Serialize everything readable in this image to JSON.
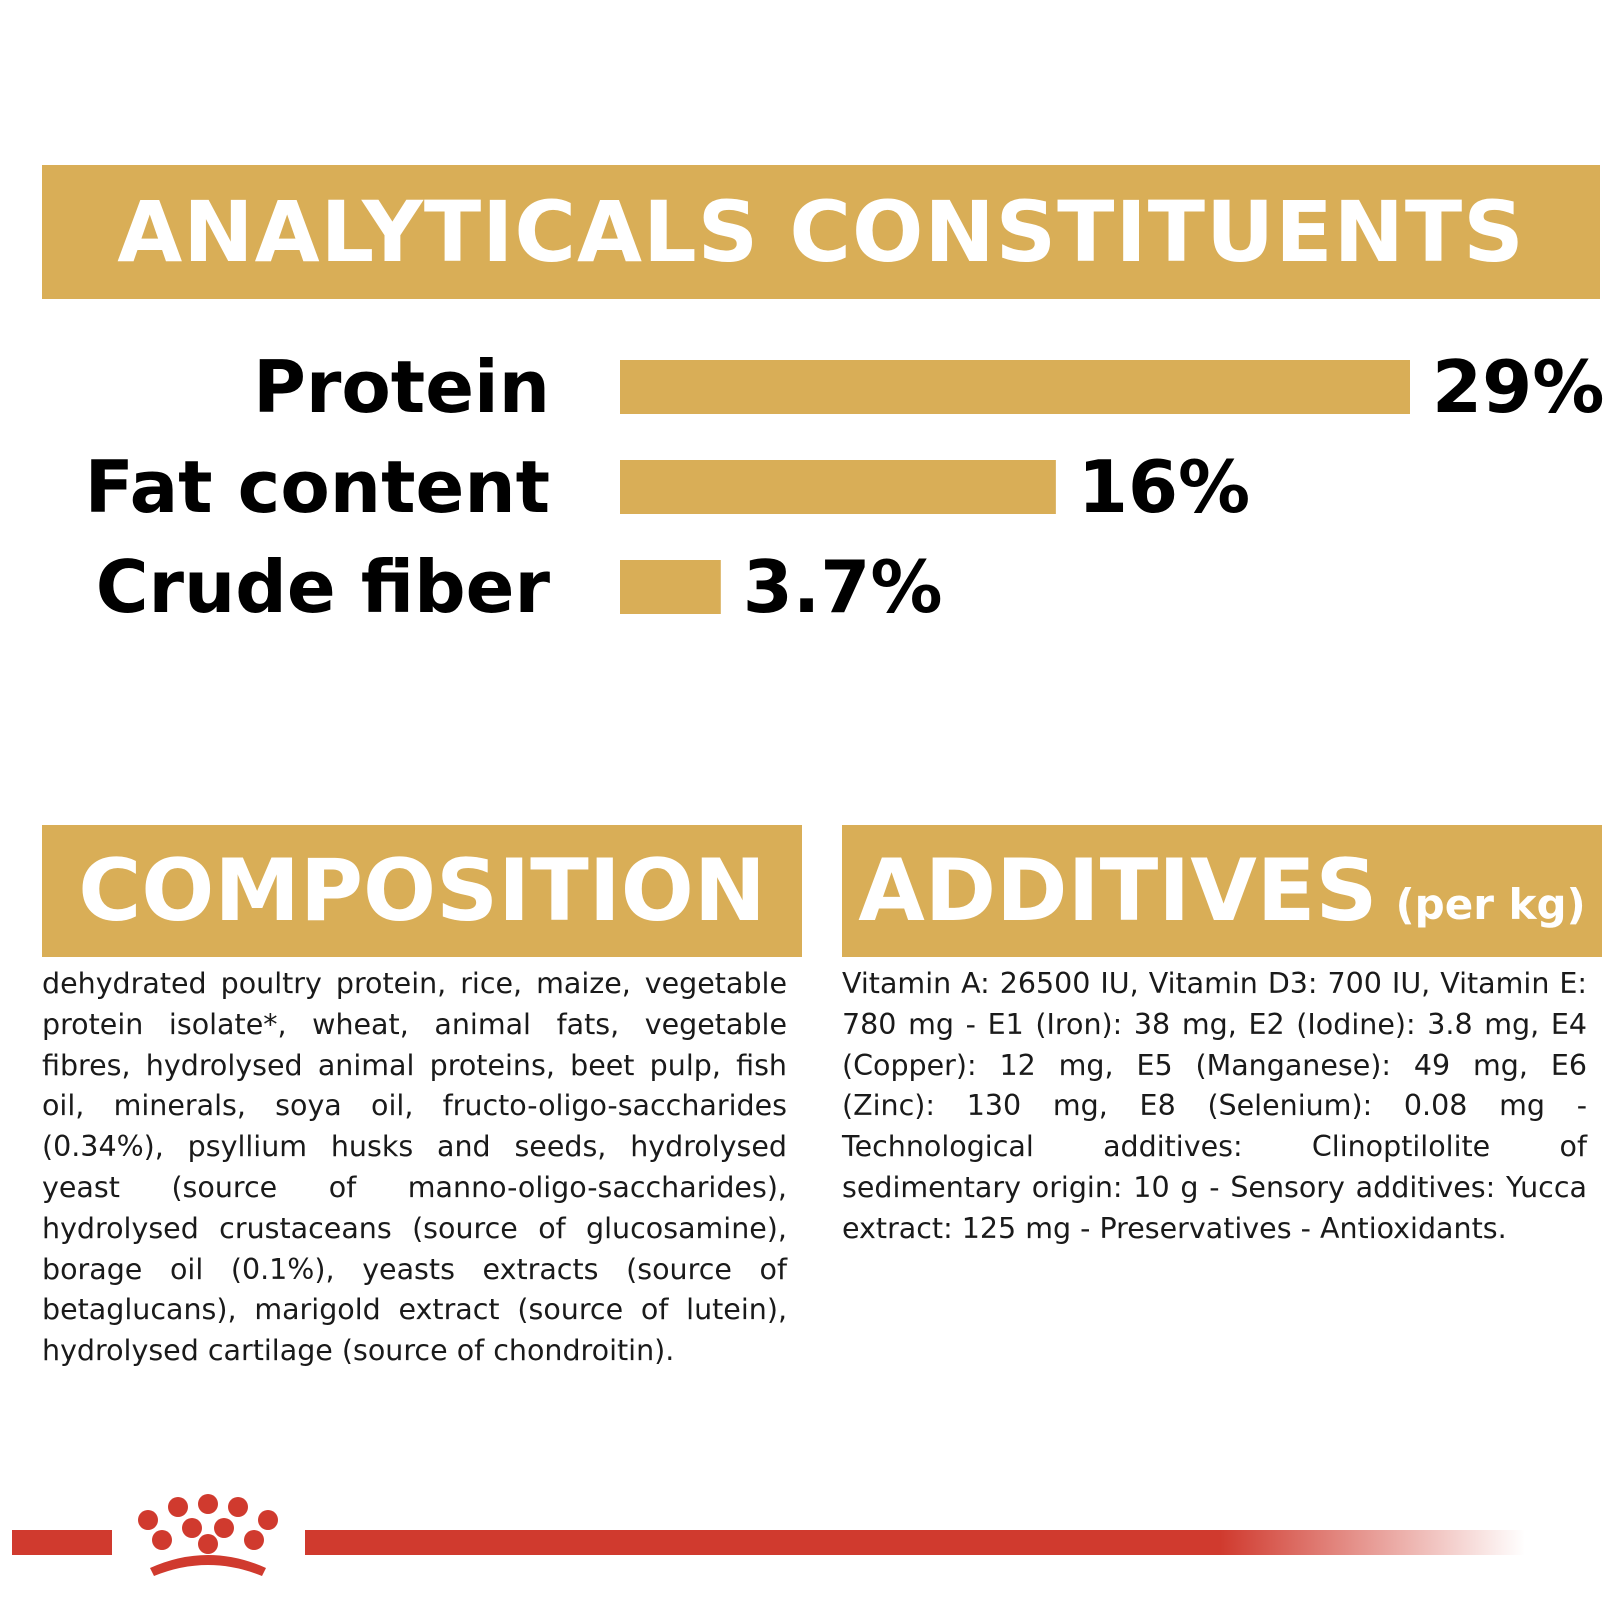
{
  "colors": {
    "gold": "#d9ae57",
    "brand_red": "#d03a2e",
    "text": "#000000"
  },
  "headings": {
    "analyticals": "ANALYTICALS CONSTITUENTS",
    "composition": "COMPOSITION",
    "additives": "ADDITIVES",
    "additives_unit": "(per kg)"
  },
  "chart_data": {
    "type": "bar",
    "orientation": "horizontal",
    "categories": [
      "Protein",
      "Fat content",
      "Crude fiber"
    ],
    "values": [
      29,
      16,
      3.7
    ],
    "value_labels": [
      "29%",
      "16%",
      "3.7%"
    ],
    "title": "ANALYTICALS CONSTITUENTS",
    "xlim": [
      0,
      29
    ],
    "grid": false
  },
  "composition_text": "dehydrated poultry protein, rice, maize, vegetable protein isolate*, wheat, animal fats, vegetable fibres, hydrolysed animal proteins, beet pulp, fish oil, minerals, soya oil, fructo-oligo-saccharides (0.34%), psyllium husks and seeds, hydrolysed yeast (source of manno-oligo-saccharides), hydrolysed crustaceans (source of glucosamine), borage oil (0.1%), yeasts extracts (source of betaglucans), marigold extract (source of lutein), hydrolysed cartilage (source of chondroitin).",
  "additives_text": "Vitamin A: 26500 IU, Vitamin D3: 700 IU, Vitamin E: 780 mg - E1 (Iron): 38 mg, E2 (Iodine): 3.8 mg, E4 (Copper): 12 mg, E5 (Manganese): 49 mg, E6 (Zinc): 130 mg, E8 (Selenium): 0.08 mg - Technological additives: Clinoptilolite of sedimentary origin: 10 g - Sensory additives: Yucca extract: 125 mg - Preservatives - Antioxidants.",
  "footer": {
    "logo": "crown-logo"
  }
}
